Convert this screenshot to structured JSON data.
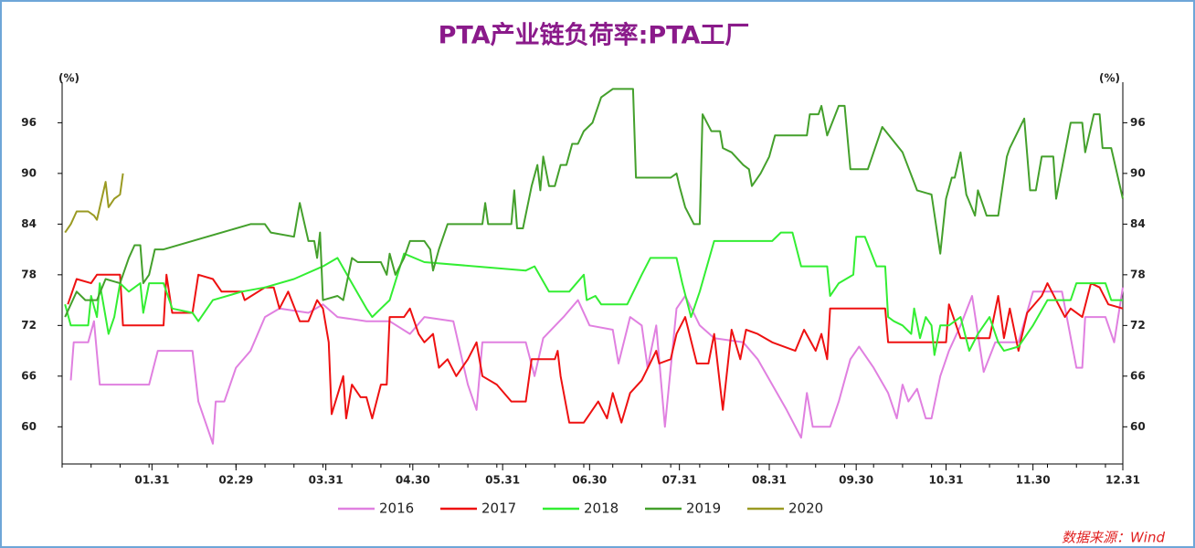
{
  "chart_data": {
    "type": "line",
    "title": "PTA产业链负荷率:PTA工厂",
    "y_label": "(%)",
    "y2_label": "(%)",
    "source": "数据来源：Wind",
    "xlim": [
      0,
      366
    ],
    "xticks": [
      {
        "value": 31,
        "label": "01.31"
      },
      {
        "value": 60,
        "label": "02.29"
      },
      {
        "value": 91,
        "label": "03.31"
      },
      {
        "value": 121,
        "label": "04.30"
      },
      {
        "value": 152,
        "label": "05.31"
      },
      {
        "value": 182,
        "label": "06.30"
      },
      {
        "value": 213,
        "label": "07.31"
      },
      {
        "value": 244,
        "label": "08.31"
      },
      {
        "value": 274,
        "label": "09.30"
      },
      {
        "value": 305,
        "label": "10.31"
      },
      {
        "value": 335,
        "label": "11.30"
      },
      {
        "value": 366,
        "label": "12.31"
      }
    ],
    "ylim": [
      55.6,
      100.8
    ],
    "yticks": [
      60,
      66,
      72,
      78,
      84,
      90,
      96
    ],
    "y2lim": [
      55.6,
      100.8
    ],
    "y2ticks": [
      60,
      66,
      72,
      78,
      84,
      90,
      96
    ],
    "legend": "bottom",
    "series": [
      {
        "name": "2016",
        "color": "#e080e0",
        "x": [
          3,
          4,
          9,
          11,
          13,
          30,
          33,
          45,
          47,
          52,
          53,
          56,
          60,
          65,
          70,
          75,
          85,
          90,
          95,
          105,
          113,
          120,
          125,
          135,
          140,
          143,
          145,
          160,
          163,
          166,
          173,
          178,
          182,
          190,
          192,
          196,
          200,
          202,
          205,
          208,
          212,
          215,
          220,
          225,
          235,
          240,
          250,
          255,
          257,
          259,
          265,
          268,
          272,
          275,
          280,
          285,
          288,
          290,
          292,
          295,
          298,
          300,
          303,
          306,
          310,
          314,
          318,
          322,
          330,
          335,
          345,
          350,
          352,
          353,
          360,
          363,
          366
        ],
        "values": [
          65.5,
          70,
          70,
          72.5,
          65,
          65,
          69,
          69,
          63,
          58,
          63,
          63,
          67,
          69,
          73,
          74,
          73.5,
          74.5,
          73,
          72.5,
          72.5,
          71,
          73,
          72.5,
          65,
          62,
          70,
          70,
          66,
          70.5,
          73,
          75,
          72,
          71.5,
          67.5,
          73,
          72,
          67,
          72,
          60,
          74,
          75.5,
          72,
          70.5,
          70,
          68,
          62,
          58.7,
          64,
          60,
          60,
          63,
          68,
          69.5,
          67,
          64,
          61,
          65,
          63,
          64.5,
          61,
          61,
          66,
          69,
          72,
          75.5,
          66.5,
          70,
          70,
          76,
          76,
          67,
          67,
          73,
          73,
          70,
          76.5
        ]
      },
      {
        "name": "2017",
        "color": "#ee1111",
        "x": [
          2,
          5,
          10,
          12,
          20,
          21,
          35,
          36,
          38,
          45,
          47,
          52,
          55,
          62,
          63,
          70,
          73,
          75,
          78,
          82,
          85,
          88,
          90,
          92,
          93,
          97,
          98,
          100,
          103,
          105,
          107,
          110,
          112,
          113,
          118,
          120,
          123,
          125,
          128,
          130,
          133,
          136,
          140,
          143,
          145,
          150,
          155,
          160,
          162,
          170,
          171,
          172,
          175,
          180,
          185,
          188,
          190,
          193,
          196,
          200,
          205,
          206,
          210,
          212,
          215,
          219,
          223,
          225,
          228,
          231,
          234,
          236,
          240,
          245,
          253,
          256,
          260,
          262,
          264,
          265,
          284,
          285,
          305,
          306,
          310,
          320,
          323,
          325,
          327,
          330,
          333,
          338,
          340,
          343,
          346,
          348,
          352,
          355,
          358,
          361,
          366
        ],
        "values": [
          74.5,
          77.5,
          77,
          78,
          78,
          72,
          72,
          78,
          73.5,
          73.5,
          78,
          77.5,
          76,
          76,
          75,
          76.5,
          76.5,
          74,
          76,
          72.5,
          72.5,
          75,
          74,
          70,
          61.5,
          66,
          61,
          65,
          63.5,
          63.5,
          61,
          65,
          65,
          73,
          73,
          74,
          71,
          70,
          71,
          67,
          68,
          66,
          68,
          70,
          66,
          65,
          63,
          63,
          68,
          68,
          69,
          66,
          60.5,
          60.5,
          63,
          61,
          64,
          60.5,
          64,
          65.5,
          69,
          67.5,
          68,
          71,
          73,
          67.5,
          67.5,
          71,
          62,
          71.5,
          68,
          71.5,
          71,
          70,
          69,
          71.5,
          69,
          71,
          68,
          74,
          74,
          70,
          70,
          74.5,
          70.5,
          70.5,
          75.5,
          70.5,
          74,
          69,
          73.5,
          75.5,
          77,
          75,
          73,
          74,
          73,
          77,
          76.5,
          74.5,
          74
        ]
      },
      {
        "name": "2018",
        "color": "#33ee33",
        "x": [
          1,
          3,
          9,
          10,
          12,
          13,
          16,
          18,
          20,
          23,
          27,
          28,
          30,
          35,
          38,
          45,
          47,
          52,
          62,
          70,
          80,
          90,
          95,
          100,
          105,
          107,
          110,
          113,
          118,
          125,
          160,
          163,
          168,
          175,
          180,
          181,
          184,
          186,
          195,
          200,
          203,
          212,
          214,
          217,
          220,
          225,
          245,
          248,
          252,
          255,
          264,
          265,
          268,
          273,
          274,
          277,
          281,
          284,
          285,
          287,
          290,
          293,
          294,
          296,
          298,
          300,
          301,
          303,
          306,
          310,
          313,
          316,
          320,
          323,
          325,
          330,
          335,
          340,
          348,
          350,
          360,
          362,
          366
        ],
        "values": [
          74.5,
          72,
          72,
          75.5,
          73,
          77,
          71,
          73,
          77,
          76,
          77,
          73.5,
          77,
          77,
          74,
          73.5,
          72.5,
          75,
          76,
          76.5,
          77.5,
          79,
          80,
          77,
          74,
          73,
          74,
          75,
          80.5,
          79.5,
          78.5,
          79,
          76,
          76,
          78,
          75,
          75.5,
          74.5,
          74.5,
          78,
          80,
          80,
          77,
          73,
          76,
          82,
          82,
          83,
          83,
          79,
          79,
          75.5,
          77,
          78,
          82.5,
          82.5,
          79,
          79,
          73,
          72.5,
          72,
          71,
          74,
          70.5,
          73,
          72,
          68.5,
          72,
          72,
          73,
          69,
          71,
          73,
          70,
          69,
          69.5,
          72,
          75,
          75,
          77,
          77,
          75,
          75
        ]
      },
      {
        "name": "2019",
        "color": "#44a02c",
        "x": [
          1,
          5,
          8,
          12,
          15,
          20,
          23,
          25,
          27,
          28,
          30,
          32,
          35,
          65,
          70,
          72,
          80,
          82,
          85,
          87,
          88,
          89,
          90,
          95,
          97,
          100,
          102,
          110,
          112,
          113,
          115,
          118,
          120,
          125,
          127,
          128,
          130,
          133,
          145,
          146,
          147,
          155,
          156,
          157,
          159,
          162,
          164,
          165,
          166,
          168,
          170,
          172,
          174,
          176,
          178,
          180,
          183,
          186,
          190,
          197,
          198,
          210,
          212,
          213,
          215,
          218,
          220,
          221,
          224,
          227,
          228,
          231,
          235,
          237,
          238,
          241,
          244,
          246,
          257,
          258,
          261,
          262,
          264,
          268,
          270,
          272,
          278,
          280,
          283,
          290,
          295,
          300,
          303,
          305,
          307,
          308,
          310,
          312,
          315,
          316,
          319,
          323,
          326,
          327,
          332,
          334,
          336,
          338,
          342,
          343,
          348,
          352,
          353,
          356,
          358,
          359,
          362,
          363,
          366
        ],
        "values": [
          73,
          76,
          75,
          75,
          77.5,
          77,
          80,
          81.5,
          81.5,
          77,
          78,
          81,
          81,
          84,
          84,
          83,
          82.5,
          86.5,
          82,
          82,
          80,
          83,
          75,
          75.5,
          75,
          80,
          79.5,
          79.5,
          78,
          80.5,
          78,
          80,
          82,
          82,
          81,
          78.5,
          81,
          84,
          84,
          86.5,
          84,
          84,
          88,
          83.5,
          83.5,
          88.5,
          91,
          88,
          92,
          88.5,
          88.5,
          91,
          91,
          93.5,
          93.5,
          95,
          96,
          99,
          100,
          100,
          89.5,
          89.5,
          90,
          88.5,
          86,
          84,
          84,
          97,
          95,
          95,
          93,
          92.5,
          91,
          90.5,
          88.5,
          90,
          92,
          94.5,
          94.5,
          97,
          97,
          98,
          94.5,
          98,
          98,
          90.5,
          90.5,
          92.5,
          95.5,
          92.5,
          88,
          87.5,
          80.5,
          87,
          89.5,
          89.5,
          92.5,
          87.5,
          85,
          88,
          85,
          85,
          92,
          93,
          96.5,
          88,
          88,
          92,
          92,
          87,
          96,
          96,
          92.5,
          97,
          97,
          93,
          93,
          91.5,
          87
        ]
      },
      {
        "name": "2020",
        "color": "#9a9a22",
        "x": [
          1,
          3,
          5,
          9,
          11,
          12,
          15,
          16,
          18,
          20,
          21
        ],
        "values": [
          83,
          84,
          85.5,
          85.5,
          85,
          84.5,
          89,
          86,
          87,
          87.5,
          90
        ]
      }
    ]
  }
}
